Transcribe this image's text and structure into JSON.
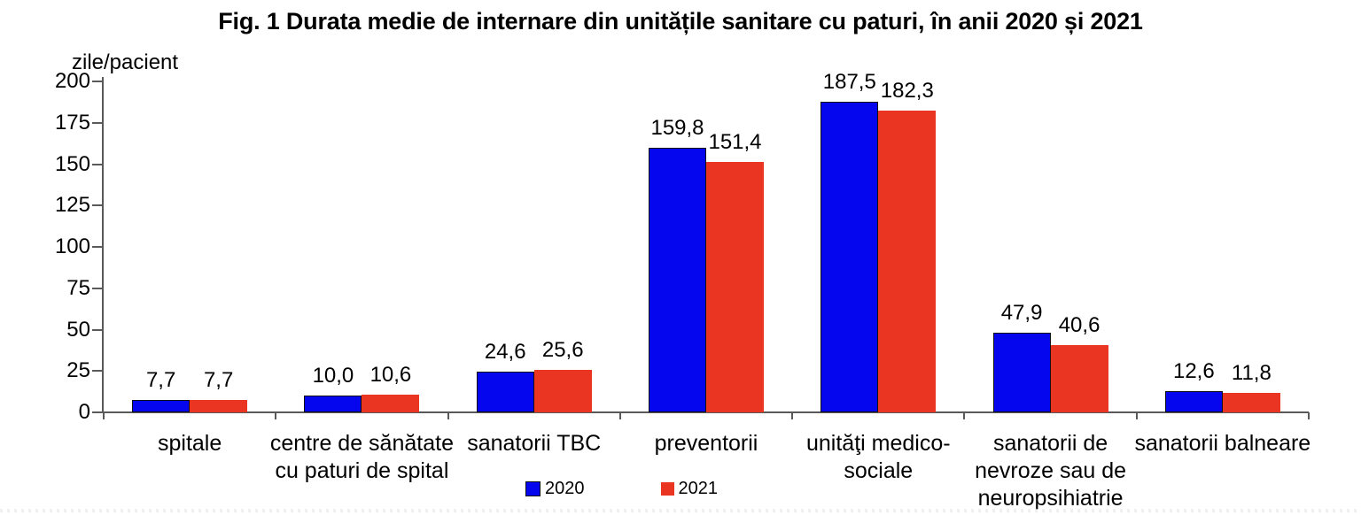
{
  "page": {
    "background": "#ffffff",
    "axis_color": "#595959",
    "text_color": "#000000"
  },
  "chart_data": {
    "type": "bar",
    "title": "Fig. 1 Durata medie de internare din unitățile sanitare cu paturi, în anii 2020 și 2021",
    "ylabel": "zile/pacient",
    "xlabel": "",
    "ylim": [
      0,
      200
    ],
    "yticks": [
      0,
      25,
      50,
      75,
      100,
      125,
      150,
      175,
      200
    ],
    "grid": false,
    "legend_position": "bottom-center",
    "categories": [
      "spitale",
      "centre de sănătate cu paturi de spital",
      "sanatorii TBC",
      "preventorii",
      "unităţi medico-sociale",
      "sanatorii de nevroze sau de neuropsihiatrie",
      "sanatorii balneare"
    ],
    "categories_display": [
      [
        "spitale"
      ],
      [
        "centre de sănătate",
        "cu paturi de spital"
      ],
      [
        "sanatorii TBC"
      ],
      [
        "preventorii"
      ],
      [
        "unităţi medico-",
        "sociale"
      ],
      [
        "sanatorii de",
        "nevroze sau de",
        "neuropsihiatrie"
      ],
      [
        "sanatorii balneare"
      ]
    ],
    "series": [
      {
        "name": "2020",
        "color": "#0505ee",
        "border_color": "#111111",
        "values": [
          7.7,
          10.0,
          24.6,
          159.8,
          187.5,
          47.9,
          12.6
        ],
        "labels": [
          "7,7",
          "10,0",
          "24,6",
          "159,8",
          "187,5",
          "47,9",
          "12,6"
        ]
      },
      {
        "name": "2021",
        "color": "#eb3523",
        "border_color": null,
        "values": [
          7.7,
          10.6,
          25.6,
          151.4,
          182.3,
          40.6,
          11.8
        ],
        "labels": [
          "7,7",
          "10,6",
          "25,6",
          "151,4",
          "182,3",
          "40,6",
          "11,8"
        ]
      }
    ]
  }
}
